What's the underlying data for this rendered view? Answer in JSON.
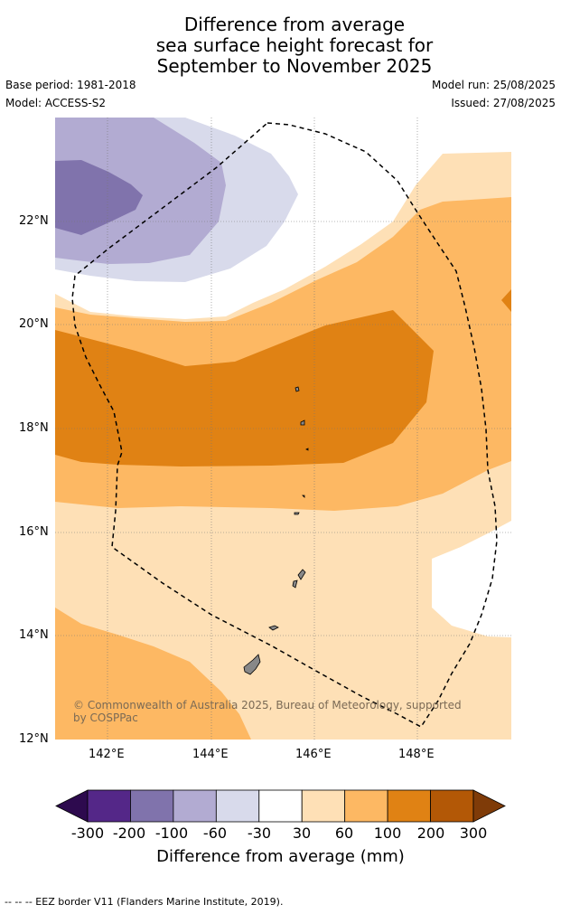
{
  "header": {
    "title_lines": [
      "Difference from average",
      "sea surface height forecast for",
      "September to November 2025"
    ],
    "base_period": "Base period: 1981-2018",
    "model": "Model: ACCESS-S2",
    "model_run": "Model run: 25/08/2025",
    "issued": "Issued: 27/08/2025"
  },
  "map": {
    "lat_ticks": [
      "22°N",
      "20°N",
      "18°N",
      "16°N",
      "14°N",
      "12°N"
    ],
    "lon_ticks": [
      "142°E",
      "144°E",
      "146°E",
      "148°E"
    ],
    "copyright": "© Commonwealth of Australia 2025, Bureau of Meteorology, supported by COSPPac",
    "eez_label": "--  --  -- EEZ border V11 (Flanders Marine Institute, 2019)."
  },
  "legend": {
    "title": "Difference from average (mm)",
    "labels": [
      "-300",
      "-200",
      "-100",
      "-60",
      "-30",
      "30",
      "60",
      "100",
      "200",
      "300"
    ],
    "colors": [
      "#2d0a4e",
      "#542788",
      "#8073ac",
      "#b2abd2",
      "#d8daeb",
      "#ffffff",
      "#fee0b6",
      "#fdb863",
      "#e08214",
      "#b35806",
      "#7f3b08"
    ]
  }
}
